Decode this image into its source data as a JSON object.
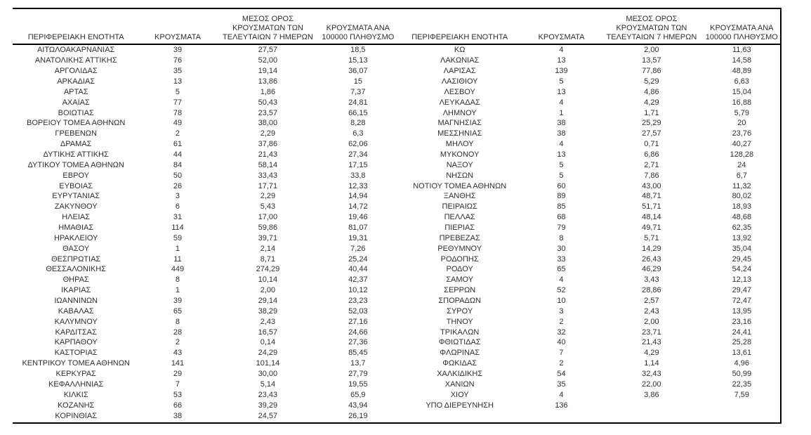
{
  "colors": {
    "background": "#ffffff",
    "text": "#2e2e2e",
    "rule": "#000000"
  },
  "table": {
    "headers": {
      "region": "ΠΕΡΙΦΕΡΕΙΑΚΗ ΕΝΟΤΗΤΑ",
      "cases": "ΚΡΟΥΣΜΑΤΑ",
      "avg7": "ΜΕΣΟΣ ΟΡΟΣ ΚΡΟΥΣΜΑΤΩΝ ΤΩΝ ΤΕΛΕΥΤΑΙΩΝ 7 ΗΜΕΡΩΝ",
      "per100k": "ΚΡΟΥΣΜΑΤΑ ΑΝΑ 100000 ΠΛΗΘΥΣΜΟ"
    },
    "left_rows": [
      [
        "ΑΙΤΩΛΟΑΚΑΡΝΑΝΙΑΣ",
        "39",
        "27,57",
        "18,5"
      ],
      [
        "ΑΝΑΤΟΛΙΚΗΣ ΑΤΤΙΚΗΣ",
        "76",
        "52,00",
        "15,13"
      ],
      [
        "ΑΡΓΟΛΙΔΑΣ",
        "35",
        "19,14",
        "36,07"
      ],
      [
        "ΑΡΚΑΔΙΑΣ",
        "13",
        "13,86",
        "15"
      ],
      [
        "ΑΡΤΑΣ",
        "5",
        "1,86",
        "7,37"
      ],
      [
        "ΑΧΑΪΑΣ",
        "77",
        "50,43",
        "24,81"
      ],
      [
        "ΒΟΙΩΤΙΑΣ",
        "78",
        "23,57",
        "66,15"
      ],
      [
        "ΒΟΡΕΙΟΥ ΤΟΜΕΑ ΑΘΗΝΩΝ",
        "49",
        "38,00",
        "8,28"
      ],
      [
        "ΓΡΕΒΕΝΩΝ",
        "2",
        "2,29",
        "6,3"
      ],
      [
        "ΔΡΑΜΑΣ",
        "61",
        "37,86",
        "62,06"
      ],
      [
        "ΔΥΤΙΚΗΣ ΑΤΤΙΚΗΣ",
        "44",
        "21,43",
        "27,34"
      ],
      [
        "ΔΥΤΙΚΟΥ ΤΟΜΕΑ ΑΘΗΝΩΝ",
        "84",
        "58,14",
        "17,15"
      ],
      [
        "ΕΒΡΟΥ",
        "50",
        "33,43",
        "33,8"
      ],
      [
        "ΕΥΒΟΙΑΣ",
        "26",
        "17,71",
        "12,33"
      ],
      [
        "ΕΥΡΥΤΑΝΙΑΣ",
        "3",
        "2,29",
        "14,94"
      ],
      [
        "ΖΑΚΥΝΘΟΥ",
        "6",
        "5,43",
        "14,72"
      ],
      [
        "ΗΛΕΙΑΣ",
        "31",
        "17,00",
        "19,46"
      ],
      [
        "ΗΜΑΘΙΑΣ",
        "114",
        "59,86",
        "81,07"
      ],
      [
        "ΗΡΑΚΛΕΙΟΥ",
        "59",
        "39,71",
        "19,31"
      ],
      [
        "ΘΑΣΟΥ",
        "1",
        "2,14",
        "7,26"
      ],
      [
        "ΘΕΣΠΡΩΤΙΑΣ",
        "11",
        "8,71",
        "25,24"
      ],
      [
        "ΘΕΣΣΑΛΟΝΙΚΗΣ",
        "449",
        "274,29",
        "40,44"
      ],
      [
        "ΘΗΡΑΣ",
        "8",
        "10,14",
        "42,37"
      ],
      [
        "ΙΚΑΡΙΑΣ",
        "1",
        "2,00",
        "10,12"
      ],
      [
        "ΙΩΑΝΝΙΝΩΝ",
        "39",
        "29,14",
        "23,23"
      ],
      [
        "ΚΑΒΑΛΑΣ",
        "65",
        "38,29",
        "52,03"
      ],
      [
        "ΚΑΛΥΜΝΟΥ",
        "8",
        "2,43",
        "27,16"
      ],
      [
        "ΚΑΡΔΙΤΣΑΣ",
        "28",
        "16,57",
        "24,66"
      ],
      [
        "ΚΑΡΠΑΘΟΥ",
        "2",
        "0,14",
        "27,36"
      ],
      [
        "ΚΑΣΤΟΡΙΑΣ",
        "43",
        "24,29",
        "85,45"
      ],
      [
        "ΚΕΝΤΡΙΚΟΥ ΤΟΜΕΑ ΑΘΗΝΩΝ",
        "141",
        "101,14",
        "13,7"
      ],
      [
        "ΚΕΡΚΥΡΑΣ",
        "29",
        "30,00",
        "27,79"
      ],
      [
        "ΚΕΦΑΛΛΗΝΙΑΣ",
        "7",
        "5,14",
        "19,55"
      ],
      [
        "ΚΙΛΚΙΣ",
        "53",
        "23,43",
        "65,9"
      ],
      [
        "ΚΟΖΑΝΗΣ",
        "66",
        "39,29",
        "43,94"
      ],
      [
        "ΚΟΡΙΝΘΙΑΣ",
        "38",
        "24,57",
        "26,19"
      ]
    ],
    "right_rows": [
      [
        "ΚΩ",
        "4",
        "2,00",
        "11,63"
      ],
      [
        "ΛΑΚΩΝΙΑΣ",
        "13",
        "13,57",
        "14,58"
      ],
      [
        "ΛΑΡΙΣΑΣ",
        "139",
        "77,86",
        "48,89"
      ],
      [
        "ΛΑΣΙΘΙΟΥ",
        "5",
        "5,29",
        "6,63"
      ],
      [
        "ΛΕΣΒΟΥ",
        "13",
        "4,86",
        "15,04"
      ],
      [
        "ΛΕΥΚΑΔΑΣ",
        "4",
        "4,29",
        "16,88"
      ],
      [
        "ΛΗΜΝΟΥ",
        "1",
        "1,71",
        "5,79"
      ],
      [
        "ΜΑΓΝΗΣΙΑΣ",
        "38",
        "25,29",
        "20"
      ],
      [
        "ΜΕΣΣΗΝΙΑΣ",
        "38",
        "27,57",
        "23,76"
      ],
      [
        "ΜΗΛΟΥ",
        "4",
        "0,71",
        "40,27"
      ],
      [
        "ΜΥΚΟΝΟΥ",
        "13",
        "6,86",
        "128,28"
      ],
      [
        "ΝΑΞΟΥ",
        "5",
        "2,71",
        "24"
      ],
      [
        "ΝΗΣΩΝ",
        "5",
        "7,86",
        "6,7"
      ],
      [
        "ΝΟΤΙΟΥ ΤΟΜΕΑ ΑΘΗΝΩΝ",
        "60",
        "43,00",
        "11,32"
      ],
      [
        "ΞΑΝΘΗΣ",
        "89",
        "48,71",
        "80,02"
      ],
      [
        "ΠΕΙΡΑΙΩΣ",
        "85",
        "51,71",
        "18,93"
      ],
      [
        "ΠΕΛΛΑΣ",
        "68",
        "48,14",
        "48,68"
      ],
      [
        "ΠΙΕΡΙΑΣ",
        "79",
        "49,71",
        "62,35"
      ],
      [
        "ΠΡΕΒΕΖΑΣ",
        "8",
        "5,71",
        "13,92"
      ],
      [
        "ΡΕΘΥΜΝΟΥ",
        "30",
        "14,29",
        "35,04"
      ],
      [
        "ΡΟΔΟΠΗΣ",
        "33",
        "26,43",
        "29,45"
      ],
      [
        "ΡΟΔΟΥ",
        "65",
        "46,29",
        "54,24"
      ],
      [
        "ΣΑΜΟΥ",
        "4",
        "3,43",
        "12,13"
      ],
      [
        "ΣΕΡΡΩΝ",
        "52",
        "28,86",
        "29,47"
      ],
      [
        "ΣΠΟΡΑΔΩΝ",
        "10",
        "2,57",
        "72,47"
      ],
      [
        "ΣΥΡΟΥ",
        "3",
        "2,43",
        "13,95"
      ],
      [
        "ΤΗΝΟΥ",
        "2",
        "2,00",
        "23,16"
      ],
      [
        "ΤΡΙΚΑΛΩΝ",
        "32",
        "23,71",
        "24,41"
      ],
      [
        "ΦΘΙΩΤΙΔΑΣ",
        "40",
        "21,43",
        "25,28"
      ],
      [
        "ΦΛΩΡΙΝΑΣ",
        "7",
        "4,29",
        "13,61"
      ],
      [
        "ΦΩΚΙΔΑΣ",
        "2",
        "1,14",
        "4,96"
      ],
      [
        "ΧΑΛΚΙΔΙΚΗΣ",
        "54",
        "32,43",
        "50,99"
      ],
      [
        "ΧΑΝΙΩΝ",
        "35",
        "22,00",
        "22,35"
      ],
      [
        "ΧΙΟΥ",
        "4",
        "3,86",
        "7,59"
      ],
      [
        "ΥΠΟ ΔΙΕΡΕΥΝΗΣΗ",
        "136",
        "",
        ""
      ]
    ]
  }
}
